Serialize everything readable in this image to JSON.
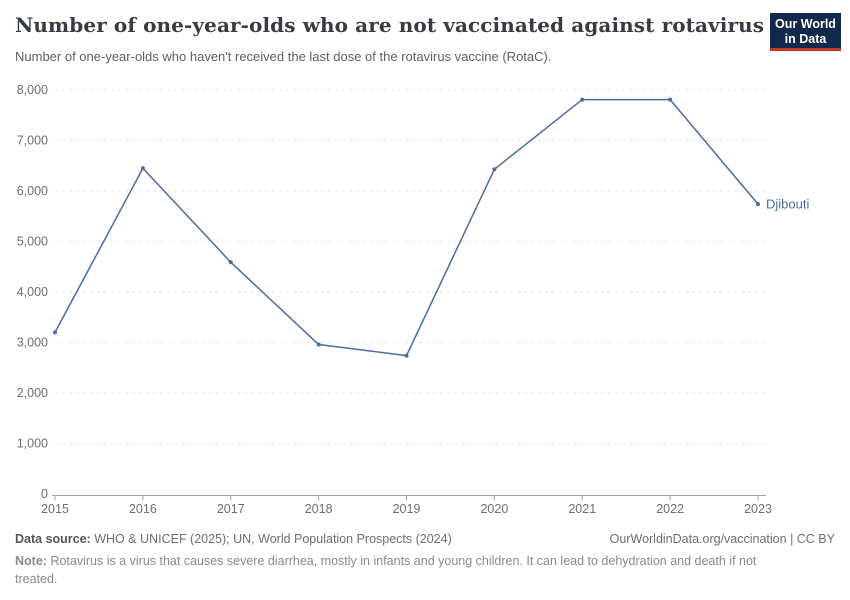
{
  "header": {
    "title": "Number of one-year-olds who are not vaccinated against rotavirus",
    "subtitle": "Number of one-year-olds who haven't received the last dose of the rotavirus vaccine (RotaC).",
    "logo_line1": "Our World",
    "logo_line2": "in Data",
    "logo_bg": "#12284c",
    "logo_stripe": "#c0392b"
  },
  "chart_data": {
    "type": "line",
    "title": "Number of one-year-olds who are not vaccinated against rotavirus",
    "subtitle": "Number of one-year-olds who haven't received the last dose of the rotavirus vaccine (RotaC).",
    "xlabel": "",
    "ylabel": "",
    "x": [
      2015,
      2016,
      2017,
      2018,
      2019,
      2020,
      2021,
      2022,
      2023
    ],
    "xticks": [
      "2015",
      "2016",
      "2017",
      "2018",
      "2019",
      "2020",
      "2021",
      "2022",
      "2023"
    ],
    "yticks": [
      {
        "v": 0,
        "label": "0"
      },
      {
        "v": 1000,
        "label": "1,000"
      },
      {
        "v": 2000,
        "label": "2,000"
      },
      {
        "v": 3000,
        "label": "3,000"
      },
      {
        "v": 4000,
        "label": "4,000"
      },
      {
        "v": 5000,
        "label": "5,000"
      },
      {
        "v": 6000,
        "label": "6,000"
      },
      {
        "v": 7000,
        "label": "7,000"
      },
      {
        "v": 8000,
        "label": "8,000"
      }
    ],
    "xlim": [
      2015,
      2023
    ],
    "ylim": [
      0,
      8000
    ],
    "grid": "horizontal-dashed",
    "legend": "entity-label-at-line-end",
    "series": [
      {
        "name": "Djibouti",
        "color": "#4c6ba3",
        "values": [
          3200,
          6450,
          4590,
          2960,
          2740,
          6430,
          7810,
          7810,
          5740
        ]
      }
    ],
    "colors": {
      "grid": "#e2e2e2",
      "axis": "#a3a3a3",
      "tick_label": "#6e6e6e"
    }
  },
  "footer": {
    "source_label": "Data source:",
    "source_text": "WHO & UNICEF (2025); UN, World Population Prospects (2024)",
    "link": "OurWorldinData.org/vaccination | CC BY",
    "note_label": "Note:",
    "note_text": "Rotavirus is a virus that causes severe diarrhea, mostly in infants and young children. It can lead to dehydration and death if not treated."
  }
}
